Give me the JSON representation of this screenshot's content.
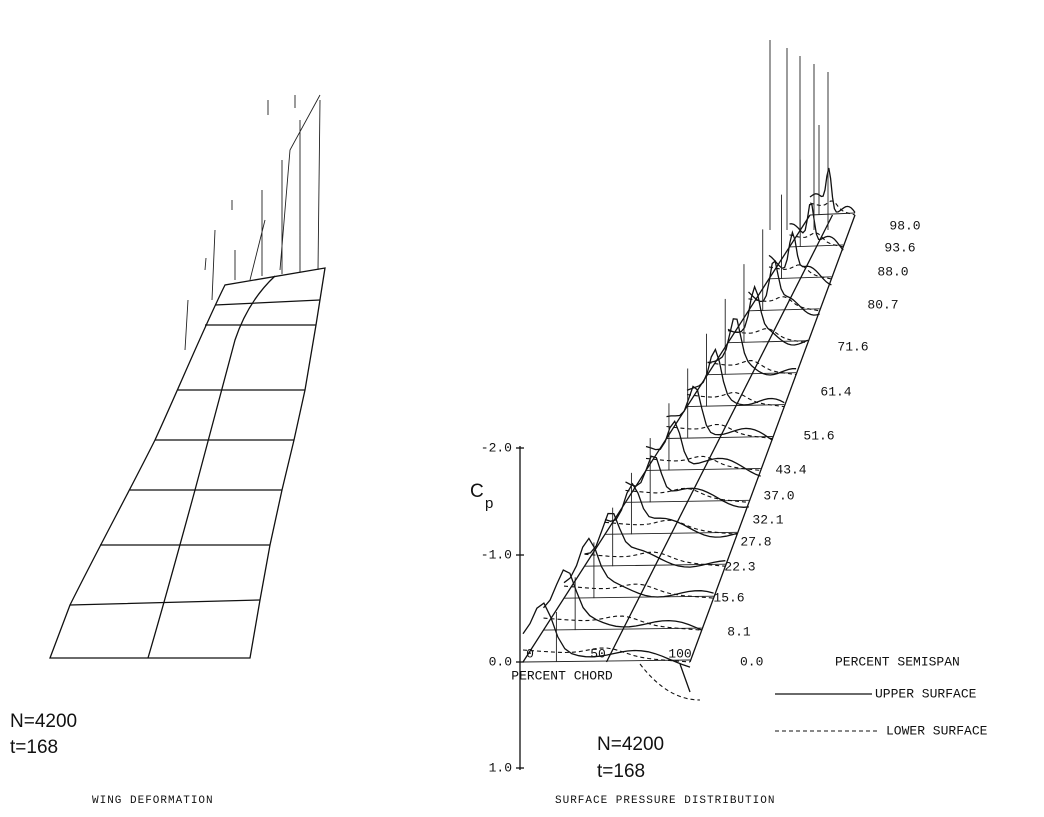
{
  "left": {
    "run_labels": [
      "N=4200",
      "t=168"
    ],
    "caption": "WING DEFORMATION"
  },
  "right": {
    "axis_label": "C",
    "axis_label_sub": "p",
    "axis_ticks": [
      "-2.0",
      "-1.0",
      "0.0",
      "1.0"
    ],
    "chord_ticks": [
      "0",
      "50",
      "100"
    ],
    "chord_title": "PERCENT CHORD",
    "span_stations": [
      "98.0",
      "93.6",
      "88.0",
      "80.7",
      "71.6",
      "61.4",
      "51.6",
      "43.4",
      "37.0",
      "32.1",
      "27.8",
      "22.3",
      "15.6",
      "8.1",
      "0.0"
    ],
    "span_title": "PERCENT SEMISPAN",
    "legend": [
      "UPPER SURFACE",
      "LOWER SURFACE"
    ],
    "run_labels": [
      "N=4200",
      "t=168"
    ],
    "caption": "SURFACE PRESSURE DISTRIBUTION"
  }
}
